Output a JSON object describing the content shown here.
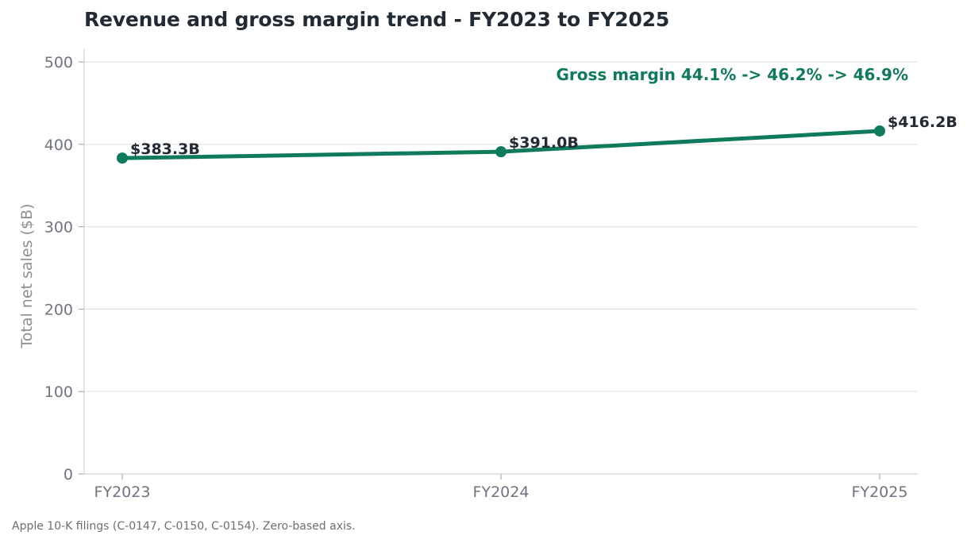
{
  "chart_data": {
    "type": "line",
    "title": "Revenue and gross margin trend - FY2023 to FY2025",
    "xlabel": "",
    "ylabel": "Total net sales ($B)",
    "categories": [
      "FY2023",
      "FY2024",
      "FY2025"
    ],
    "series": [
      {
        "values": [
          383.3,
          391.0,
          416.2
        ],
        "data_labels": [
          "$383.3B",
          "$391.0B",
          "$416.2B"
        ]
      }
    ],
    "ylim": [
      0,
      500
    ],
    "yticks": [
      0,
      100,
      200,
      300,
      400,
      500
    ],
    "grid": "horizontal",
    "annotation": "Gross margin 44.1% -> 46.2% -> 46.9%",
    "source_note": "Apple 10-K filings (C-0147, C-0150, C-0154). Zero-based axis.",
    "colors": {
      "series": "#0f7a5c",
      "annotation": "#0f7a5c",
      "grid": "#e3e3e3",
      "axis_text": "#6e7480",
      "title": "#222a33",
      "data_label": "#222a33"
    }
  }
}
